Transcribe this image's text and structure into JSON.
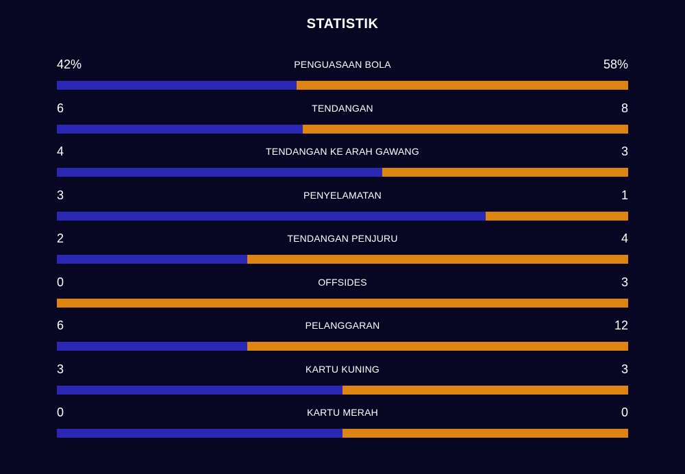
{
  "title": "STATISTIK",
  "colors": {
    "background": "#080723",
    "home": "#2a27b5",
    "away": "#de8413",
    "text": "#ffffff"
  },
  "stats": [
    {
      "label": "PENGUASAAN BOLA",
      "left": "42%",
      "right": "58%",
      "home_fraction": 0.42
    },
    {
      "label": "TENDANGAN",
      "left": "6",
      "right": "8",
      "home_fraction": 0.43
    },
    {
      "label": "TENDANGAN KE ARAH GAWANG",
      "left": "4",
      "right": "3",
      "home_fraction": 0.57
    },
    {
      "label": "PENYELAMATAN",
      "left": "3",
      "right": "1",
      "home_fraction": 0.75
    },
    {
      "label": "TENDANGAN PENJURU",
      "left": "2",
      "right": "4",
      "home_fraction": 0.333
    },
    {
      "label": "OFFSIDES",
      "left": "0",
      "right": "3",
      "home_fraction": 0.0
    },
    {
      "label": "PELANGGARAN",
      "left": "6",
      "right": "12",
      "home_fraction": 0.333
    },
    {
      "label": "KARTU KUNING",
      "left": "3",
      "right": "3",
      "home_fraction": 0.5
    },
    {
      "label": "KARTU MERAH",
      "left": "0",
      "right": "0",
      "home_fraction": 0.5
    }
  ]
}
